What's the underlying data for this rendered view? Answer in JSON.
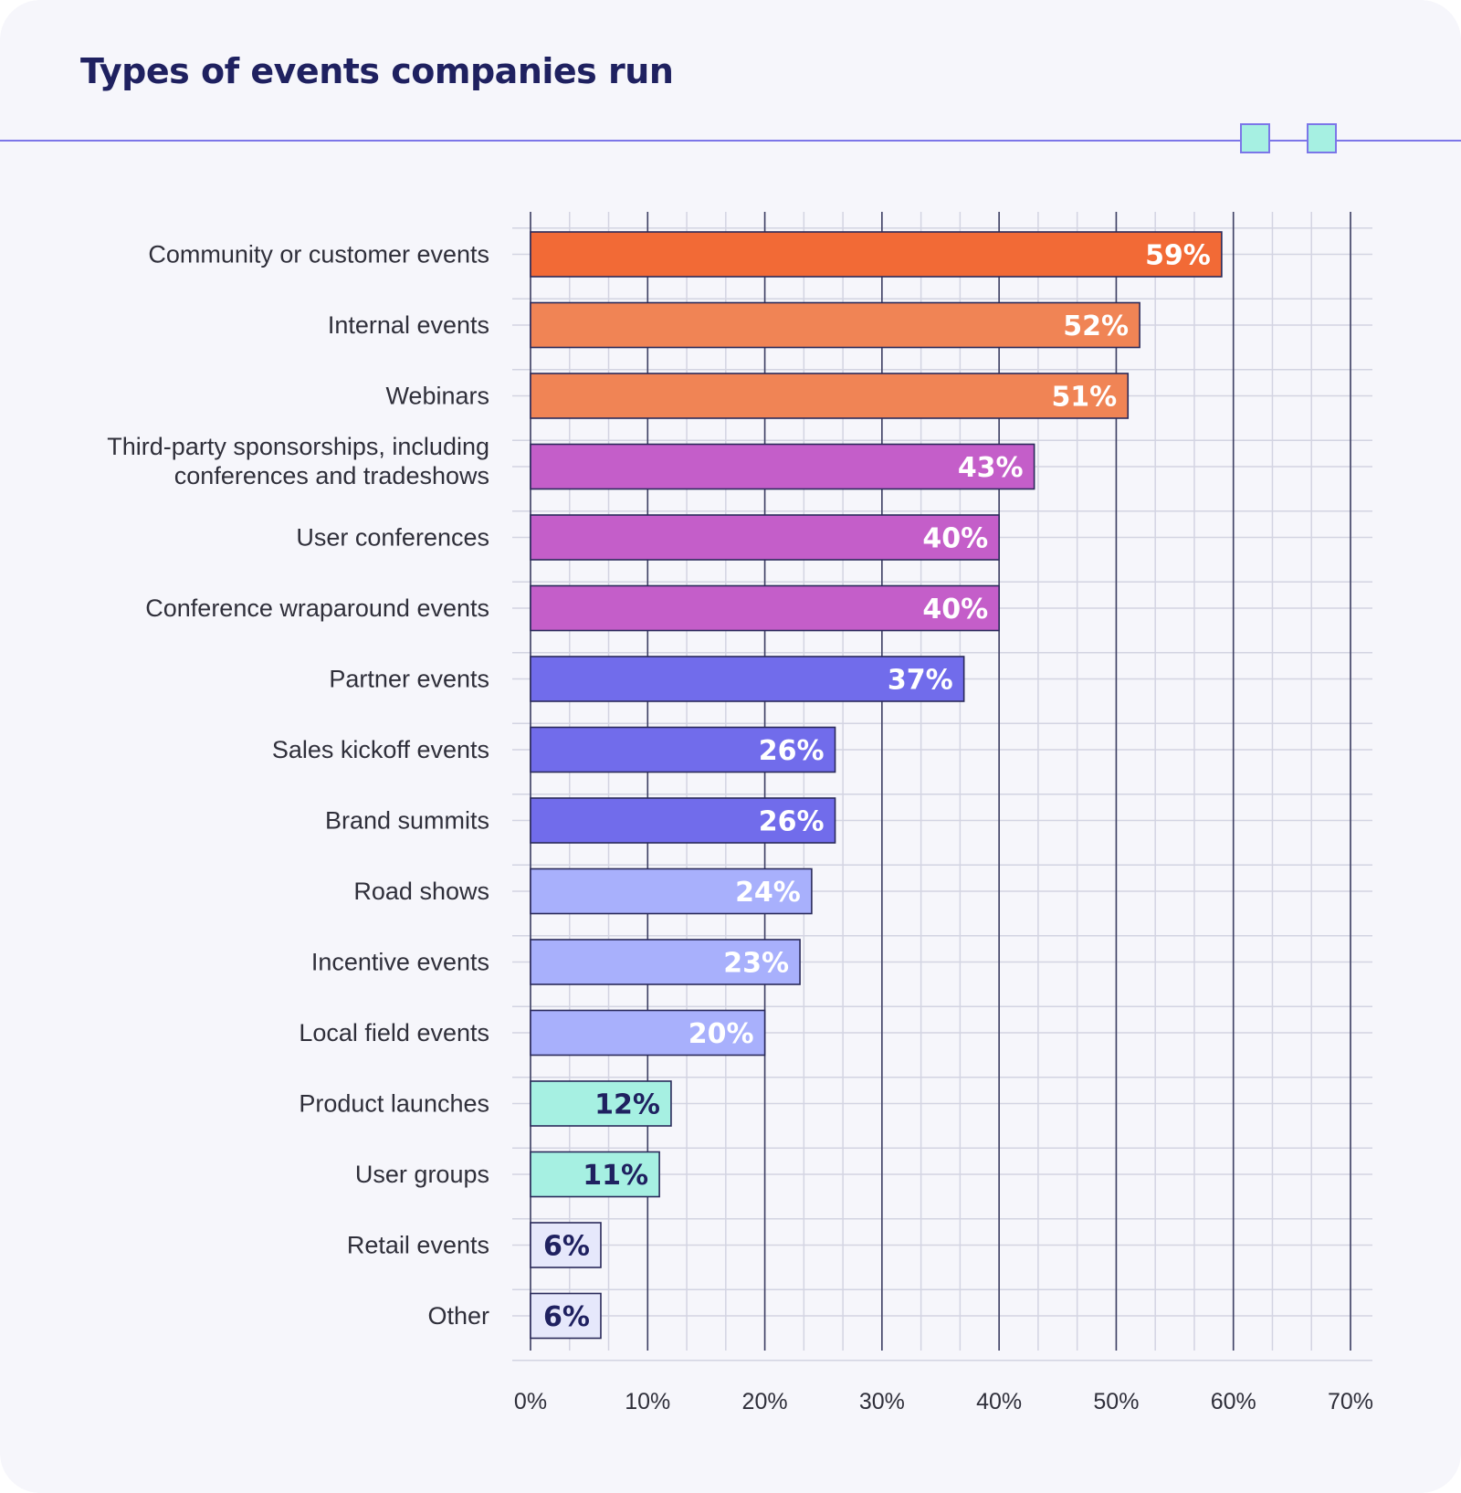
{
  "chart_data": {
    "type": "bar",
    "orientation": "horizontal",
    "title": "Types of events companies run",
    "xlabel": "",
    "ylabel": "",
    "xlim": [
      0,
      70
    ],
    "grid": true,
    "ticks": [
      {
        "value": 0,
        "label": "0%"
      },
      {
        "value": 10,
        "label": "10%"
      },
      {
        "value": 20,
        "label": "20%"
      },
      {
        "value": 30,
        "label": "30%"
      },
      {
        "value": 40,
        "label": "40%"
      },
      {
        "value": 50,
        "label": "50%"
      },
      {
        "value": 60,
        "label": "60%"
      },
      {
        "value": 70,
        "label": "70%"
      }
    ],
    "bars": [
      {
        "category": [
          "Community or customer events"
        ],
        "value": 59,
        "label": "59%",
        "color": "#f26a36",
        "text_color": "#ffffff"
      },
      {
        "category": [
          "Internal events"
        ],
        "value": 52,
        "label": "52%",
        "color": "#f08455",
        "text_color": "#ffffff"
      },
      {
        "category": [
          "Webinars"
        ],
        "value": 51,
        "label": "51%",
        "color": "#f08455",
        "text_color": "#ffffff"
      },
      {
        "category": [
          "Third-party sponsorships, including",
          "conferences and tradeshows"
        ],
        "value": 43,
        "label": "43%",
        "color": "#c45ec9",
        "text_color": "#ffffff"
      },
      {
        "category": [
          "User conferences"
        ],
        "value": 40,
        "label": "40%",
        "color": "#c45ec9",
        "text_color": "#ffffff"
      },
      {
        "category": [
          "Conference wraparound events"
        ],
        "value": 40,
        "label": "40%",
        "color": "#c45ec9",
        "text_color": "#ffffff"
      },
      {
        "category": [
          "Partner events"
        ],
        "value": 37,
        "label": "37%",
        "color": "#716ceb",
        "text_color": "#ffffff"
      },
      {
        "category": [
          "Sales kickoff events"
        ],
        "value": 26,
        "label": "26%",
        "color": "#716ceb",
        "text_color": "#ffffff"
      },
      {
        "category": [
          "Brand summits"
        ],
        "value": 26,
        "label": "26%",
        "color": "#716ceb",
        "text_color": "#ffffff"
      },
      {
        "category": [
          "Road shows"
        ],
        "value": 24,
        "label": "24%",
        "color": "#a8b0fc",
        "text_color": "#ffffff"
      },
      {
        "category": [
          "Incentive events"
        ],
        "value": 23,
        "label": "23%",
        "color": "#a8b0fc",
        "text_color": "#ffffff"
      },
      {
        "category": [
          "Local field events"
        ],
        "value": 20,
        "label": "20%",
        "color": "#a8b0fc",
        "text_color": "#ffffff"
      },
      {
        "category": [
          "Product launches"
        ],
        "value": 12,
        "label": "12%",
        "color": "#a6f0e2",
        "text_color": "#1f2160"
      },
      {
        "category": [
          "User groups"
        ],
        "value": 11,
        "label": "11%",
        "color": "#a6f0e2",
        "text_color": "#1f2160"
      },
      {
        "category": [
          "Retail events"
        ],
        "value": 6,
        "label": "6%",
        "color": "#e6e8fb",
        "text_color": "#1f2160"
      },
      {
        "category": [
          "Other"
        ],
        "value": 6,
        "label": "6%",
        "color": "#e6e8fb",
        "text_color": "#1f2160"
      }
    ]
  },
  "colors": {
    "background": "#f6f6fb",
    "title": "#1f2160",
    "accent_line": "#7c76e8",
    "bar_border": "#2a2a5a",
    "major_grid": "#3d3f63",
    "minor_grid": "#d3d4e2",
    "deco_fill": "#a6f0e2"
  }
}
